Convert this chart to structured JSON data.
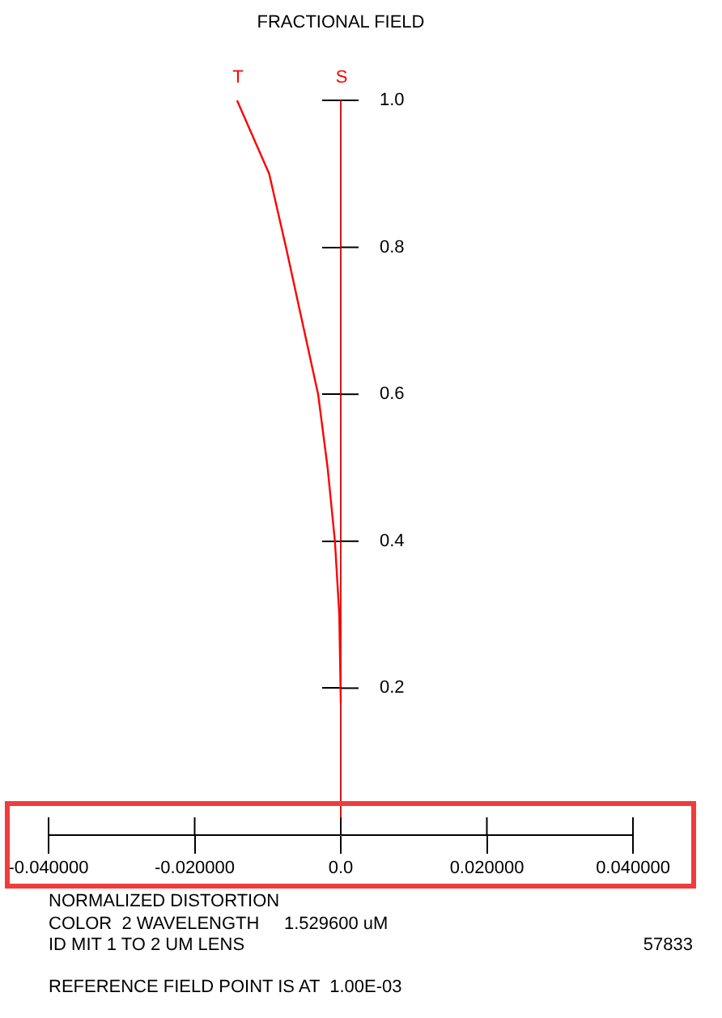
{
  "chart_data": {
    "type": "line",
    "title": "FRACTIONAL FIELD",
    "xlim": [
      -0.04,
      0.04
    ],
    "ylim": [
      0,
      1.0
    ],
    "xticks": [
      {
        "value": -0.04,
        "label": "-0.040000"
      },
      {
        "value": -0.02,
        "label": "-0.020000"
      },
      {
        "value": 0,
        "label": "0.0"
      },
      {
        "value": 0.02,
        "label": "0.020000"
      },
      {
        "value": 0.04,
        "label": "0.040000"
      }
    ],
    "yticks": [
      {
        "value": 0.2,
        "label": "0.2"
      },
      {
        "value": 0.4,
        "label": "0.4"
      },
      {
        "value": 0.6,
        "label": "0.6"
      },
      {
        "value": 0.8,
        "label": "0.8"
      },
      {
        "value": 1.0,
        "label": "1.0"
      }
    ],
    "line_style": "solid",
    "series": [
      {
        "color": "#ff0000",
        "x": [
          -0.0142,
          -0.0098,
          -0.0075,
          -0.0053,
          -0.0031,
          -0.0018,
          -0.0008,
          -0.0002,
          0
        ],
        "values": [
          1.0,
          0.9,
          0.8,
          0.7,
          0.6,
          0.5,
          0.4,
          0.3,
          0.18
        ]
      }
    ],
    "annotations": [
      "T",
      "S",
      "NORMALIZED DISTORTION",
      "COLOR  2 WAVELENGTH     1.529600 uM",
      "ID MIT 1 TO 2 UM LENS",
      "57833",
      "REFERENCE FIELD POINT IS AT  1.00E-03"
    ]
  }
}
